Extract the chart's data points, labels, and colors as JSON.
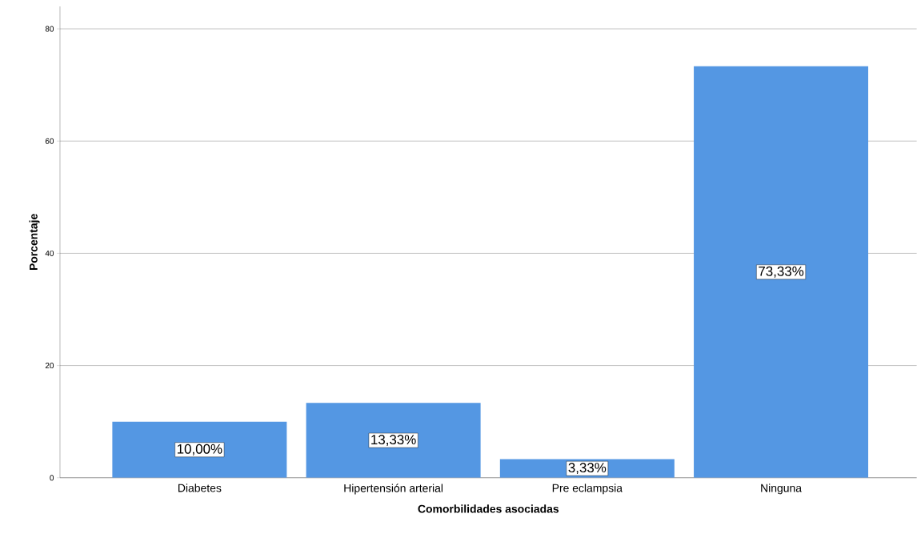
{
  "chart_data": {
    "type": "bar",
    "xlabel": "Comorbilidades asociadas",
    "ylabel": "Porcentaje",
    "categories": [
      "Diabetes",
      "Hipertensión arterial",
      "Pre eclampsia",
      "Ninguna"
    ],
    "values": [
      10.0,
      13.33,
      3.33,
      73.33
    ],
    "value_labels": [
      "10,00%",
      "13,33%",
      "3,33%",
      "73,33%"
    ],
    "color": "#5497e3",
    "ylim": [
      0,
      84
    ],
    "yticks": [
      0,
      20,
      40,
      60,
      80
    ],
    "grid": "y"
  }
}
